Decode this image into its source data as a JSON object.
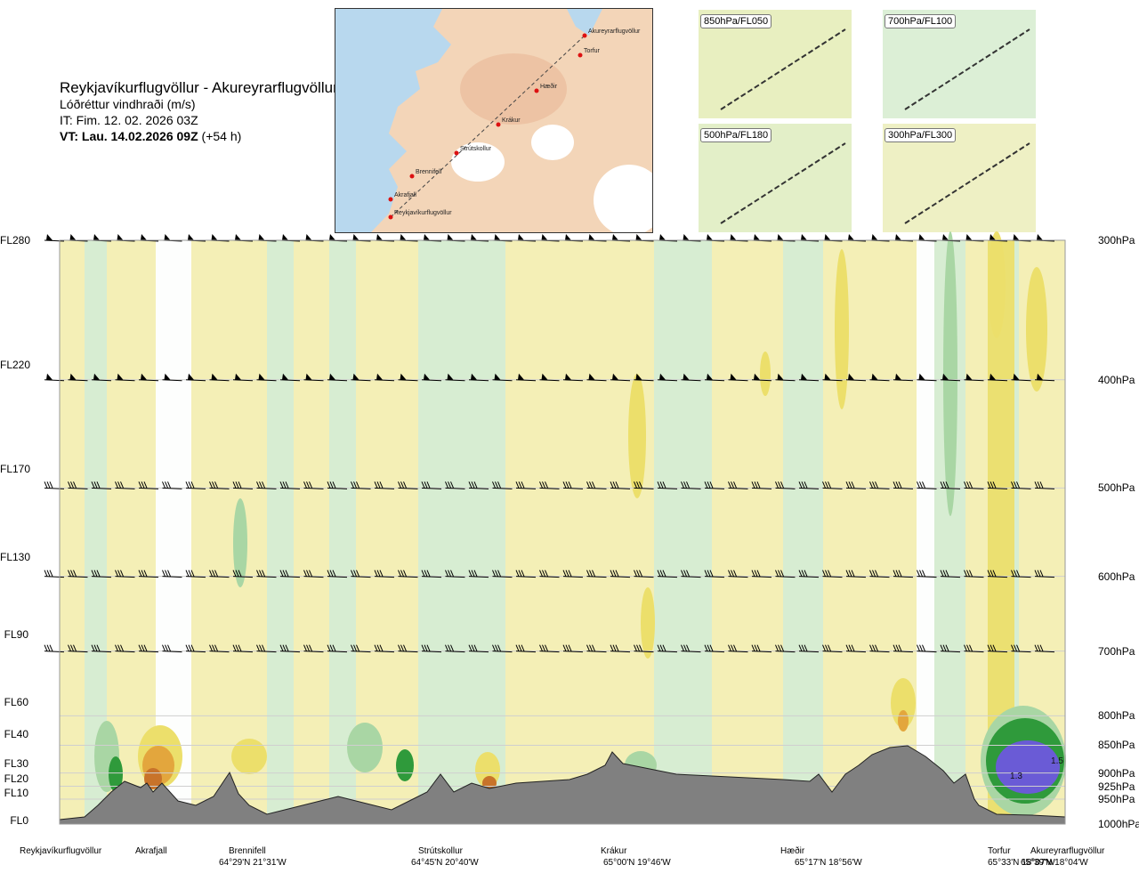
{
  "header": {
    "title": "Reykjavíkurflugvöllur - Akureyrarflugvöllur",
    "subtitle": "Lóðréttur vindhraði (m/s)",
    "issue_time": "IT: Fim. 12. 02. 2026 03Z",
    "valid_prefix": "VT: Lau. 14.02.2026 09Z",
    "valid_suffix": "(+54 h)"
  },
  "map": {
    "places": [
      {
        "name": "Akureyrarflugvöllur"
      },
      {
        "name": "Torfur"
      },
      {
        "name": "Hæðir"
      },
      {
        "name": "Krákur"
      },
      {
        "name": "Strútskollur"
      },
      {
        "name": "Brennifell"
      },
      {
        "name": "Akrafjall"
      },
      {
        "name": "Reykjavíkurflugvöllur"
      }
    ]
  },
  "mini_maps": [
    {
      "label": "850hPa/FL050"
    },
    {
      "label": "700hPa/FL100"
    },
    {
      "label": "500hPa/FL180"
    },
    {
      "label": "300hPa/FL300"
    }
  ],
  "chart_data": {
    "type": "heatmap",
    "title": "Lóðréttur vindhraði (m/s)",
    "flight_levels": [
      "FL280",
      "FL220",
      "FL170",
      "FL130",
      "FL90",
      "FL60",
      "FL40",
      "FL30",
      "FL20",
      "FL10",
      "FL0"
    ],
    "pressure_levels": [
      "300hPa",
      "400hPa",
      "500hPa",
      "600hPa",
      "700hPa",
      "800hPa",
      "850hPa",
      "900hPa",
      "925hPa",
      "950hPa",
      "1000hPa"
    ],
    "pressure_values_hpa": [
      300,
      400,
      500,
      600,
      700,
      800,
      850,
      900,
      925,
      950,
      1000
    ],
    "waypoints": [
      {
        "name": "Reykjavíkurflugvöllur",
        "coord": ""
      },
      {
        "name": "Akrafjall",
        "coord": ""
      },
      {
        "name": "Brennifell",
        "coord": "64°29'N 21°31'W"
      },
      {
        "name": "Strútskollur",
        "coord": "64°45'N 20°40'W"
      },
      {
        "name": "Krákur",
        "coord": "65°00'N 19°46'W"
      },
      {
        "name": "Hæðir",
        "coord": "65°17'N 18°56'W"
      },
      {
        "name": "Torfur",
        "coord": "65°33'N 18°07'W"
      },
      {
        "name": "Akureyrarflugvöllur",
        "coord": "65°39'N 18°04'W"
      }
    ],
    "annotations": [
      "1.3",
      "1.5"
    ],
    "colors": {
      "up_light": "#f6efb4",
      "up_mid": "#ecdf6b",
      "up_strong": "#e3a63d",
      "up_extreme": "#c8732a",
      "down_light": "#d7edd2",
      "down_mid": "#a9d6a4",
      "down_strong": "#2f9a3b",
      "down_extreme": "#6a5bd6",
      "terrain": "#808080",
      "neutral": "#ffffff"
    }
  }
}
